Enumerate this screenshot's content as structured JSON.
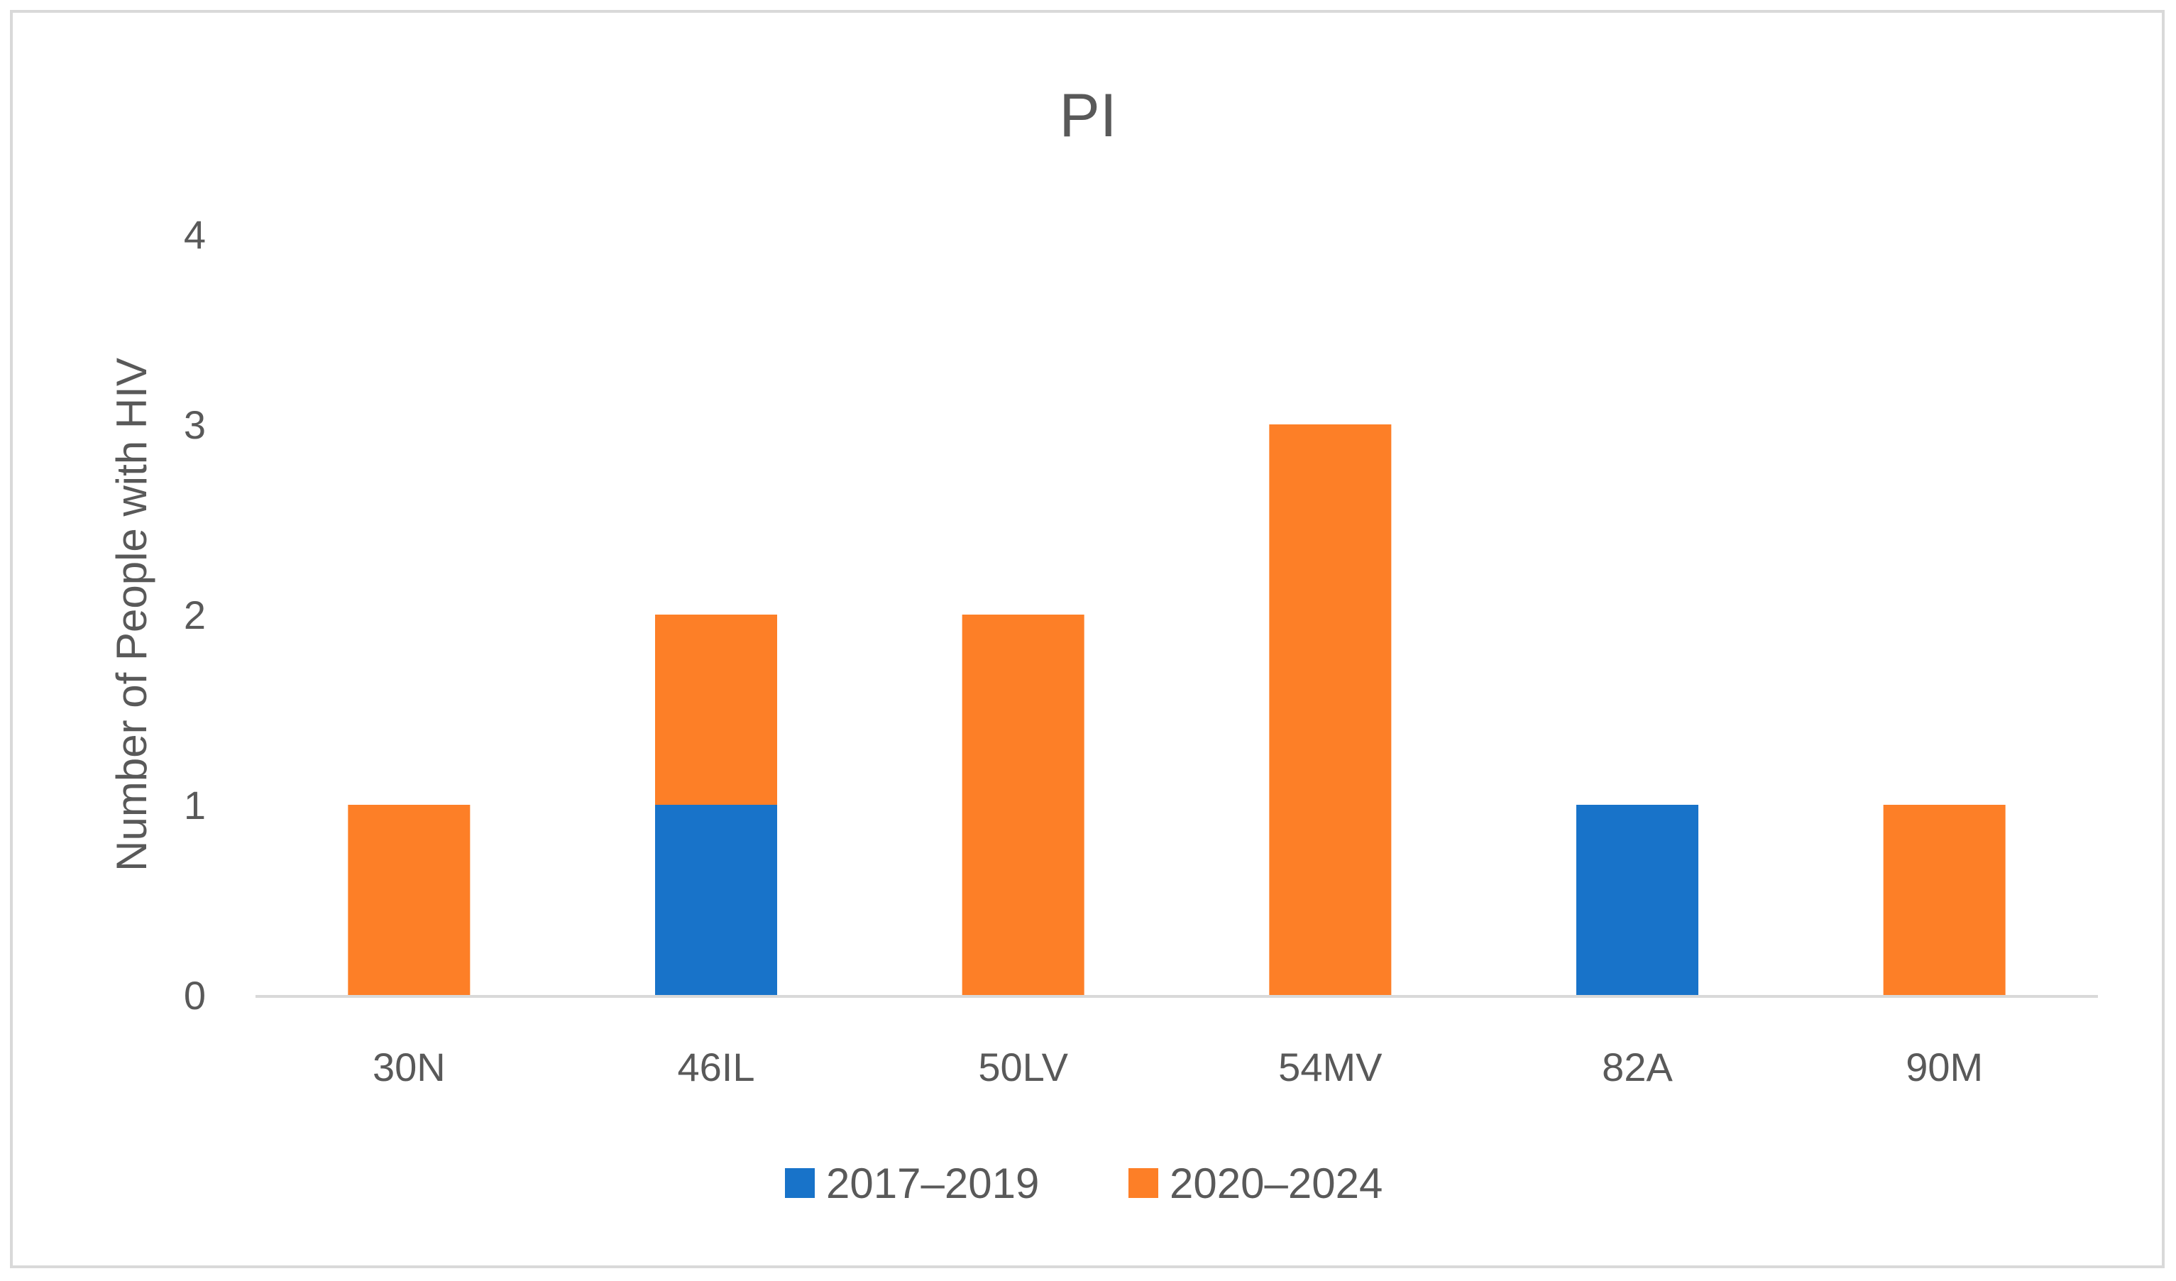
{
  "chart_data": {
    "type": "bar",
    "stacked": true,
    "title": "PI",
    "xlabel": "",
    "ylabel": "Number of People with HIV",
    "categories": [
      "30N",
      "46IL",
      "50LV",
      "54MV",
      "82A",
      "90M"
    ],
    "series": [
      {
        "name": "2017–2019",
        "color": "#1873c9",
        "values": [
          0,
          1,
          0,
          0,
          1,
          0
        ]
      },
      {
        "name": "2020–2024",
        "color": "#fd7f27",
        "values": [
          1,
          1,
          2,
          3,
          0,
          1
        ]
      }
    ],
    "ylim": [
      0,
      4
    ],
    "yticks": [
      "0",
      "1",
      "2",
      "3",
      "4"
    ],
    "grid": false,
    "legend_position": "bottom"
  }
}
